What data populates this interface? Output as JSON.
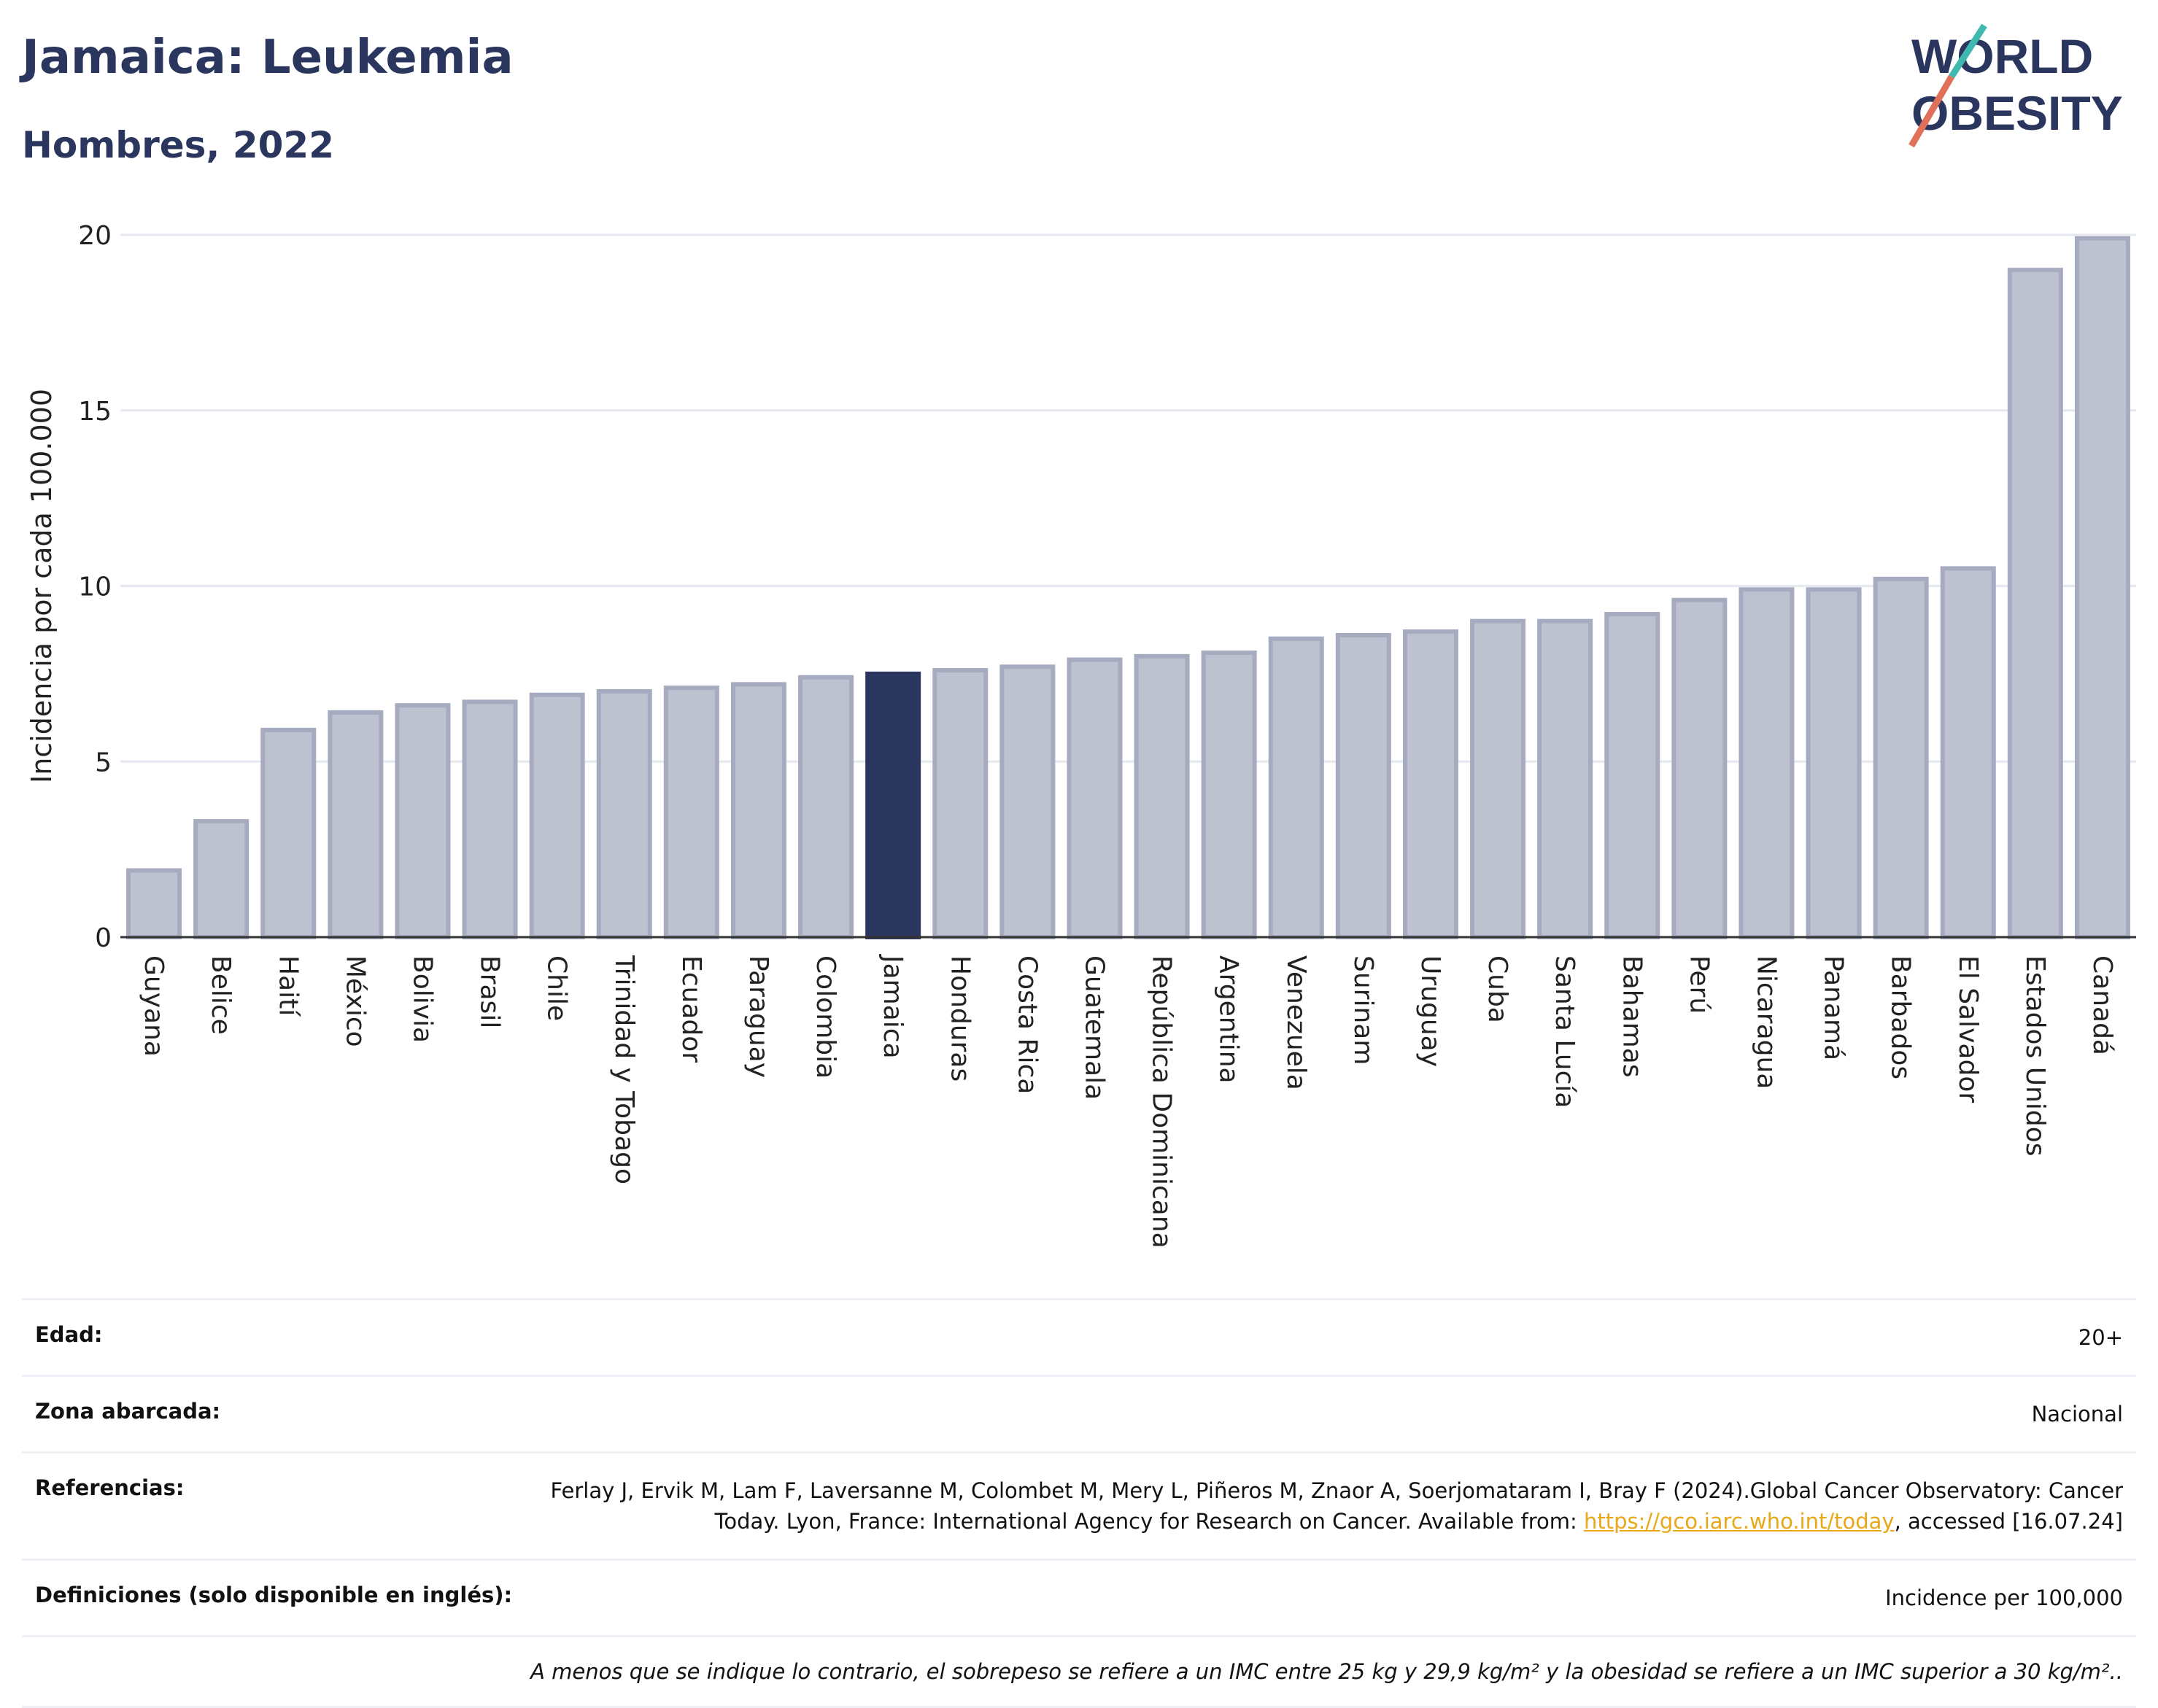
{
  "header": {
    "title": "Jamaica: Leukemia",
    "subtitle": "Hombres, 2022"
  },
  "logo": {
    "line1": "WORLD",
    "line2": "OBESITY"
  },
  "chart_data": {
    "type": "bar",
    "ylabel": "Incidencia por cada 100.000",
    "ylim": [
      0,
      20
    ],
    "yticks": [
      0,
      5,
      10,
      15,
      20
    ],
    "grid": true,
    "highlight": "Jamaica",
    "highlight_color": "#2b365f",
    "bar_color": "#bec2d0",
    "categories": [
      "Guyana",
      "Belice",
      "Haití",
      "México",
      "Bolivia",
      "Brasil",
      "Chile",
      "Trinidad y Tobago",
      "Ecuador",
      "Paraguay",
      "Colombia",
      "Jamaica",
      "Honduras",
      "Costa Rica",
      "Guatemala",
      "República Dominicana",
      "Argentina",
      "Venezuela",
      "Surinam",
      "Uruguay",
      "Cuba",
      "Santa Lucía",
      "Bahamas",
      "Perú",
      "Nicaragua",
      "Panamá",
      "Barbados",
      "El Salvador",
      "Estados Unidos",
      "Canadá"
    ],
    "values": [
      1.9,
      3.3,
      5.9,
      6.4,
      6.6,
      6.7,
      6.9,
      7.0,
      7.1,
      7.2,
      7.4,
      7.5,
      7.6,
      7.7,
      7.9,
      8.0,
      8.1,
      8.5,
      8.6,
      8.7,
      9.0,
      9.0,
      9.2,
      9.6,
      9.9,
      9.9,
      10.2,
      10.5,
      19.0,
      19.9
    ]
  },
  "meta": {
    "age_label": "Edad:",
    "age_value": "20+",
    "zone_label": "Zona abarcada:",
    "zone_value": "Nacional",
    "ref_label": "Referencias:",
    "ref_text": "Ferlay J, Ervik M, Lam F, Laversanne M, Colombet M, Mery L, Piñeros M, Znaor A, Soerjomataram I, Bray F (2024).Global Cancer Observatory: Cancer Today. Lyon, France: International Agency for Research on Cancer. Available from: ",
    "ref_link": "https://gco.iarc.who.int/today",
    "ref_tail": ", accessed [16.07.24]",
    "def_label": "Definiciones (solo disponible en inglés):",
    "def_value": "Incidence per 100,000",
    "note": "A menos que se indique lo contrario, el sobrepeso se refiere a un IMC entre 25 kg y 29,9 kg/m² y la obesidad se refiere a un IMC superior a 30 kg/m².."
  }
}
